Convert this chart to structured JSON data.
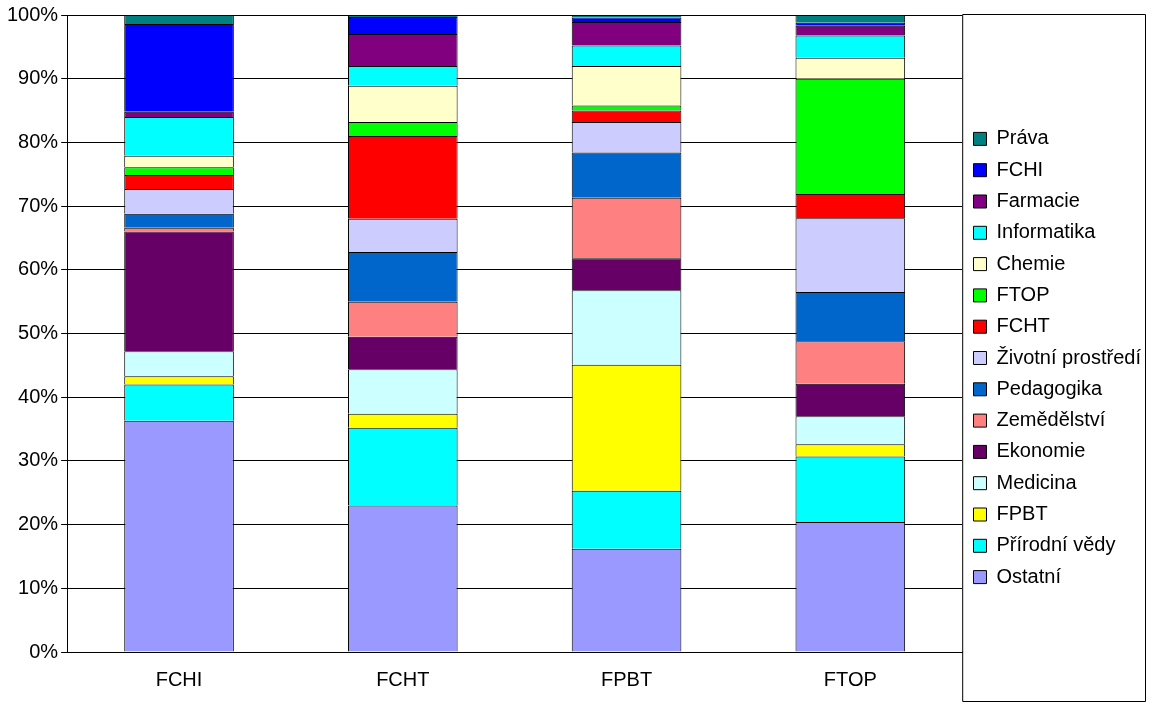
{
  "chart_data": {
    "type": "bar",
    "stacked": true,
    "categories": [
      "FCHI",
      "FCHT",
      "FPBT",
      "FTOP"
    ],
    "series": [
      {
        "name": "Ostatní",
        "color": "#9999ff",
        "values": [
          36.3,
          23,
          16.2,
          20.4
        ]
      },
      {
        "name": "Přírodní vědy",
        "color": "#00ffff",
        "values": [
          5.7,
          12.2,
          9.1,
          10.3
        ]
      },
      {
        "name": "FPBT",
        "color": "#ffff00",
        "values": [
          1.3,
          2.2,
          19.8,
          1.9
        ]
      },
      {
        "name": "Medicina",
        "color": "#ccffff",
        "values": [
          3.9,
          7,
          11.7,
          4.4
        ]
      },
      {
        "name": "Ekonomie",
        "color": "#660066",
        "values": [
          18.8,
          5.1,
          5,
          5.1
        ]
      },
      {
        "name": "Zemědělství",
        "color": "#ff8080",
        "values": [
          0.6,
          5.5,
          9.5,
          6.7
        ]
      },
      {
        "name": "Pedagogika",
        "color": "#0066cc",
        "values": [
          2.2,
          7.8,
          7.1,
          7.7
        ]
      },
      {
        "name": "Životní prostředí",
        "color": "#ccccff",
        "values": [
          3.9,
          5.2,
          4.8,
          11.6
        ]
      },
      {
        "name": "FCHT",
        "color": "#ff0000",
        "values": [
          2.2,
          13,
          1.8,
          3.8
        ]
      },
      {
        "name": "FTOP",
        "color": "#00ff00",
        "values": [
          1.2,
          2.2,
          0.8,
          18.1
        ]
      },
      {
        "name": "Chemie",
        "color": "#ffffcc",
        "values": [
          1.8,
          5.7,
          6.2,
          3.3
        ]
      },
      {
        "name": "Informatika",
        "color": "#00ffff",
        "values": [
          6.1,
          3.1,
          3.2,
          3.5
        ]
      },
      {
        "name": "Farmacie",
        "color": "#800080",
        "values": [
          0.8,
          5,
          3.7,
          1.5
        ]
      },
      {
        "name": "FCHI",
        "color": "#0000ff",
        "values": [
          13.8,
          2.7,
          0.7,
          0.5
        ]
      },
      {
        "name": "Práva",
        "color": "#008080",
        "values": [
          1.4,
          0.3,
          0.4,
          1.2
        ]
      }
    ],
    "ylim": [
      0,
      100
    ],
    "yticks": [
      {
        "value": 0,
        "label": "0%"
      },
      {
        "value": 10,
        "label": "10%"
      },
      {
        "value": 20,
        "label": "20%"
      },
      {
        "value": 30,
        "label": "30%"
      },
      {
        "value": 40,
        "label": "40%"
      },
      {
        "value": 50,
        "label": "50%"
      },
      {
        "value": 60,
        "label": "60%"
      },
      {
        "value": 70,
        "label": "70%"
      },
      {
        "value": 80,
        "label": "80%"
      },
      {
        "value": 90,
        "label": "90%"
      },
      {
        "value": 100,
        "label": "100%"
      }
    ],
    "grid": "y",
    "legend": "right"
  }
}
